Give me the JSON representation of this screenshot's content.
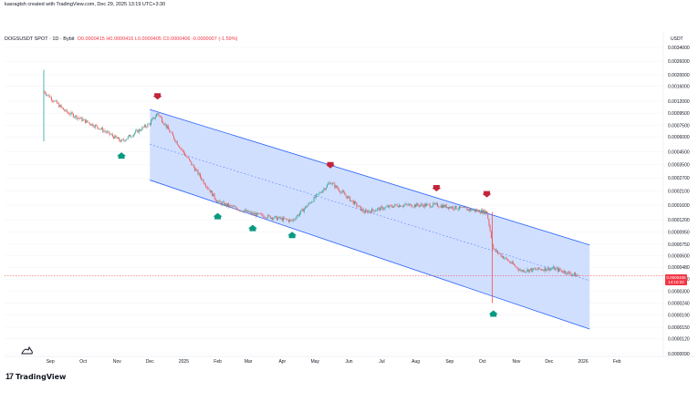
{
  "header": {
    "credit": "kasragtsh created with TradingView.com, Dec 29, 2025 13:19 UTC+3:30",
    "symbol_prefix": "DOGSUSDT SPOT · 1D · Bybit",
    "ohlc": "O0.0000415  H0.0000416  L0.0000405  C0.0000406  -0.0000007 (-1.59%)",
    "currency": "USDT"
  },
  "price_label": {
    "value": "0.0000406",
    "countdown": "14:10:32"
  },
  "footer": {
    "brand": "TradingView",
    "logo_mark": "17"
  },
  "colors": {
    "channel_fill": "#c9d9ff",
    "channel_line": "#2962ff",
    "up_candle": "#26a69a",
    "down_candle": "#ef5350",
    "down_arrow": "#c2253b",
    "up_arrow": "#089981",
    "price_line": "#f23645"
  },
  "chart_data": {
    "type": "candlestick",
    "y_scale": "log",
    "x_axis_labels": [
      "Sep",
      "Oct",
      "Nov",
      "Dec",
      "2025",
      "Feb",
      "Mar",
      "Apr",
      "May",
      "Jun",
      "Jul",
      "Aug",
      "Sep",
      "Oct",
      "Nov",
      "Dec",
      "2026",
      "Feb"
    ],
    "y_axis_labels": [
      "0.0034000",
      "0.0026000",
      "0.0020000",
      "0.0016000",
      "0.0012000",
      "0.0009500",
      "0.0007500",
      "0.0006000",
      "0.0004500",
      "0.0003500",
      "0.0002700",
      "0.0002100",
      "0.0001600",
      "0.0001200",
      "0.0000950",
      "0.0000750",
      "0.0000600",
      "0.0000480",
      "0.0000380",
      "0.0000300",
      "0.0000240",
      "0.0000190",
      "0.0000150",
      "0.0000120",
      "0.0000090"
    ],
    "approx_price_path": [
      {
        "date": "2024-08-26",
        "close": 0.00145
      },
      {
        "date": "2024-09-15",
        "close": 0.00098
      },
      {
        "date": "2024-10-15",
        "close": 0.00072
      },
      {
        "date": "2024-11-05",
        "close": 0.00055
      },
      {
        "date": "2024-12-01",
        "close": 0.00078
      },
      {
        "date": "2024-12-08",
        "close": 0.00095
      },
      {
        "date": "2025-01-01",
        "close": 0.00044
      },
      {
        "date": "2025-02-01",
        "close": 0.00017
      },
      {
        "date": "2025-03-05",
        "close": 0.000135
      },
      {
        "date": "2025-04-10",
        "close": 0.000118
      },
      {
        "date": "2025-05-15",
        "close": 0.00025
      },
      {
        "date": "2025-06-15",
        "close": 0.00014
      },
      {
        "date": "2025-07-15",
        "close": 0.00016
      },
      {
        "date": "2025-08-20",
        "close": 0.00016
      },
      {
        "date": "2025-10-05",
        "close": 0.00014
      },
      {
        "date": "2025-10-11",
        "close": 6.8e-05
      },
      {
        "date": "2025-11-05",
        "close": 4.5e-05
      },
      {
        "date": "2025-12-05",
        "close": 4.7e-05
      },
      {
        "date": "2025-12-28",
        "close": 4.06e-05
      }
    ],
    "regression_channel": {
      "start_date": "2024-12-01",
      "end_date": "2025-12-28",
      "upper": [
        0.00102,
        7.4e-05
      ],
      "middle": [
        0.00052,
        3.7e-05
      ],
      "lower": [
        0.00026,
        1.45e-05
      ]
    },
    "markers": [
      {
        "kind": "sell",
        "date": "2024-12-08"
      },
      {
        "kind": "buy",
        "date": "2024-11-05"
      },
      {
        "kind": "buy",
        "date": "2025-02-01"
      },
      {
        "kind": "buy",
        "date": "2025-03-05"
      },
      {
        "kind": "buy",
        "date": "2025-04-10"
      },
      {
        "kind": "sell",
        "date": "2025-05-15"
      },
      {
        "kind": "sell",
        "date": "2025-08-20"
      },
      {
        "kind": "sell",
        "date": "2025-10-05"
      },
      {
        "kind": "buy",
        "date": "2025-10-11"
      }
    ],
    "last_price": 4.06e-05
  }
}
